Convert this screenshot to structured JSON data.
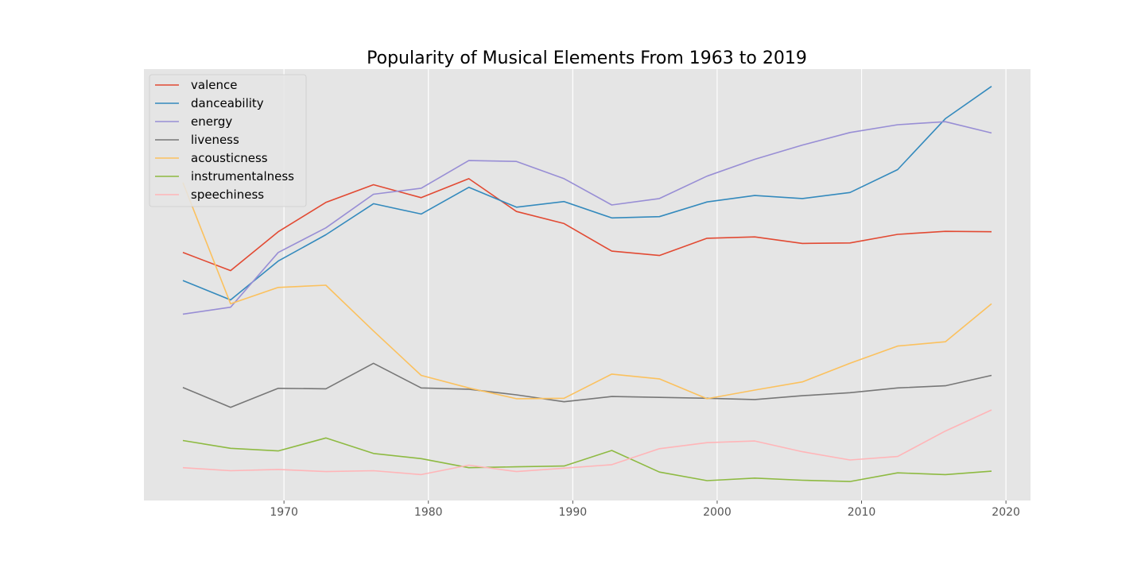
{
  "chart_data": {
    "type": "line",
    "title": "Popularity of Musical Elements From 1963 to 2019",
    "xlabel": "",
    "ylabel": "",
    "xlim": [
      1960.3,
      2021.7
    ],
    "ylim": [
      0,
      1
    ],
    "x_ticks": [
      1970,
      1980,
      1990,
      2000,
      2010,
      2020
    ],
    "grid": true,
    "y_tick_labels_shown": false,
    "legend_position": "top-left",
    "x": [
      1963,
      1966.3,
      1969.6,
      1972.9,
      1976.2,
      1979.5,
      1982.8,
      1986.1,
      1989.4,
      1992.7,
      1996,
      1999.3,
      2002.6,
      2005.9,
      2009.2,
      2012.5,
      2015.8,
      2019
    ],
    "series": [
      {
        "name": "valence",
        "color": "#E24A33",
        "values": [
          0.575,
          0.533,
          0.623,
          0.691,
          0.732,
          0.702,
          0.746,
          0.67,
          0.642,
          0.578,
          0.568,
          0.608,
          0.611,
          0.596,
          0.597,
          0.617,
          0.624,
          0.623
        ]
      },
      {
        "name": "danceability",
        "color": "#348ABD",
        "values": [
          0.51,
          0.465,
          0.555,
          0.616,
          0.688,
          0.664,
          0.726,
          0.68,
          0.693,
          0.655,
          0.658,
          0.692,
          0.707,
          0.7,
          0.714,
          0.767,
          0.885,
          0.96
        ]
      },
      {
        "name": "energy",
        "color": "#988ED5",
        "values": [
          0.432,
          0.448,
          0.575,
          0.632,
          0.71,
          0.724,
          0.788,
          0.786,
          0.746,
          0.685,
          0.7,
          0.752,
          0.791,
          0.824,
          0.853,
          0.871,
          0.878,
          0.852
        ]
      },
      {
        "name": "liveness",
        "color": "#777777",
        "values": [
          0.262,
          0.216,
          0.26,
          0.259,
          0.318,
          0.261,
          0.258,
          0.245,
          0.229,
          0.241,
          0.239,
          0.237,
          0.234,
          0.243,
          0.25,
          0.261,
          0.266,
          0.29
        ]
      },
      {
        "name": "acousticness",
        "color": "#FBC15E",
        "values": [
          0.737,
          0.456,
          0.494,
          0.499,
          0.393,
          0.29,
          0.261,
          0.236,
          0.237,
          0.293,
          0.282,
          0.236,
          0.256,
          0.275,
          0.318,
          0.358,
          0.368,
          0.456
        ]
      },
      {
        "name": "instrumentalness",
        "color": "#8EBA42",
        "values": [
          0.139,
          0.121,
          0.115,
          0.145,
          0.109,
          0.097,
          0.076,
          0.078,
          0.08,
          0.116,
          0.066,
          0.046,
          0.052,
          0.047,
          0.044,
          0.064,
          0.06,
          0.068
        ]
      },
      {
        "name": "speechiness",
        "color": "#FFB5B8",
        "values": [
          0.076,
          0.069,
          0.072,
          0.067,
          0.069,
          0.06,
          0.082,
          0.067,
          0.075,
          0.083,
          0.12,
          0.134,
          0.138,
          0.113,
          0.094,
          0.102,
          0.161,
          0.21
        ]
      }
    ]
  }
}
